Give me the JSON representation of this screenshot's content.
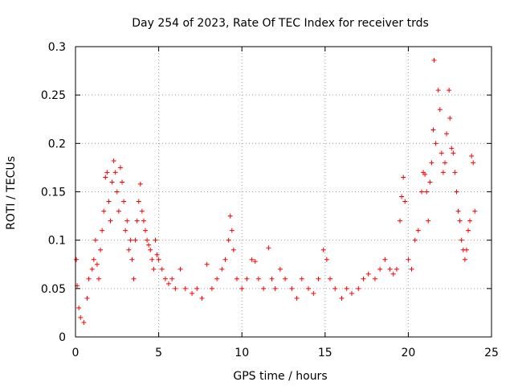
{
  "chart_data": {
    "type": "scatter",
    "title": "Day 254 of 2023, Rate Of TEC Index for receiver trds",
    "xlabel": "GPS time / hours",
    "ylabel": "ROTI / TECUs",
    "xlim": [
      0,
      25
    ],
    "ylim": [
      0,
      0.3
    ],
    "xticks": [
      0,
      5,
      10,
      15,
      20,
      25
    ],
    "xtick_labels": [
      "0",
      "5",
      "10",
      "15",
      "20",
      "25"
    ],
    "yticks": [
      0,
      0.05,
      0.1,
      0.15,
      0.2,
      0.25,
      0.3
    ],
    "ytick_labels": [
      "0",
      "0.05",
      "0.1",
      "0.15",
      "0.2",
      "0.25",
      "0.3"
    ],
    "grid": true,
    "marker": "+",
    "color": "#ff0000",
    "series": [
      {
        "name": "ROTI",
        "points": [
          [
            0.05,
            0.08
          ],
          [
            0.1,
            0.053
          ],
          [
            0.2,
            0.03
          ],
          [
            0.3,
            0.02
          ],
          [
            0.5,
            0.015
          ],
          [
            0.7,
            0.04
          ],
          [
            0.8,
            0.06
          ],
          [
            1.0,
            0.07
          ],
          [
            1.1,
            0.08
          ],
          [
            1.2,
            0.1
          ],
          [
            1.3,
            0.075
          ],
          [
            1.4,
            0.06
          ],
          [
            1.5,
            0.09
          ],
          [
            1.6,
            0.11
          ],
          [
            1.7,
            0.13
          ],
          [
            1.8,
            0.165
          ],
          [
            1.9,
            0.17
          ],
          [
            2.0,
            0.14
          ],
          [
            2.1,
            0.12
          ],
          [
            2.2,
            0.16
          ],
          [
            2.3,
            0.182
          ],
          [
            2.4,
            0.17
          ],
          [
            2.5,
            0.15
          ],
          [
            2.6,
            0.13
          ],
          [
            2.7,
            0.175
          ],
          [
            2.8,
            0.16
          ],
          [
            2.9,
            0.14
          ],
          [
            3.0,
            0.11
          ],
          [
            3.1,
            0.12
          ],
          [
            3.2,
            0.09
          ],
          [
            3.3,
            0.1
          ],
          [
            3.4,
            0.08
          ],
          [
            3.5,
            0.06
          ],
          [
            3.6,
            0.1
          ],
          [
            3.7,
            0.12
          ],
          [
            3.8,
            0.14
          ],
          [
            3.9,
            0.158
          ],
          [
            4.0,
            0.13
          ],
          [
            4.1,
            0.12
          ],
          [
            4.2,
            0.11
          ],
          [
            4.3,
            0.1
          ],
          [
            4.4,
            0.095
          ],
          [
            4.5,
            0.09
          ],
          [
            4.6,
            0.08
          ],
          [
            4.7,
            0.07
          ],
          [
            4.8,
            0.1
          ],
          [
            4.9,
            0.085
          ],
          [
            5.0,
            0.08
          ],
          [
            5.2,
            0.07
          ],
          [
            5.4,
            0.06
          ],
          [
            5.6,
            0.055
          ],
          [
            5.8,
            0.06
          ],
          [
            6.0,
            0.05
          ],
          [
            6.3,
            0.07
          ],
          [
            6.6,
            0.05
          ],
          [
            7.0,
            0.045
          ],
          [
            7.3,
            0.05
          ],
          [
            7.6,
            0.04
          ],
          [
            7.9,
            0.075
          ],
          [
            8.2,
            0.05
          ],
          [
            8.5,
            0.06
          ],
          [
            8.8,
            0.07
          ],
          [
            9.0,
            0.08
          ],
          [
            9.2,
            0.1
          ],
          [
            9.3,
            0.125
          ],
          [
            9.4,
            0.11
          ],
          [
            9.5,
            0.09
          ],
          [
            9.7,
            0.06
          ],
          [
            10.0,
            0.05
          ],
          [
            10.3,
            0.06
          ],
          [
            10.6,
            0.08
          ],
          [
            10.8,
            0.078
          ],
          [
            11.0,
            0.06
          ],
          [
            11.3,
            0.05
          ],
          [
            11.6,
            0.092
          ],
          [
            11.8,
            0.06
          ],
          [
            12.0,
            0.05
          ],
          [
            12.3,
            0.07
          ],
          [
            12.6,
            0.06
          ],
          [
            13.0,
            0.05
          ],
          [
            13.3,
            0.04
          ],
          [
            13.6,
            0.06
          ],
          [
            14.0,
            0.05
          ],
          [
            14.3,
            0.045
          ],
          [
            14.6,
            0.06
          ],
          [
            14.9,
            0.09
          ],
          [
            15.1,
            0.08
          ],
          [
            15.3,
            0.06
          ],
          [
            15.6,
            0.05
          ],
          [
            16.0,
            0.04
          ],
          [
            16.3,
            0.05
          ],
          [
            16.6,
            0.045
          ],
          [
            17.0,
            0.05
          ],
          [
            17.3,
            0.06
          ],
          [
            17.6,
            0.065
          ],
          [
            18.0,
            0.06
          ],
          [
            18.3,
            0.07
          ],
          [
            18.6,
            0.08
          ],
          [
            18.9,
            0.07
          ],
          [
            19.1,
            0.065
          ],
          [
            19.3,
            0.07
          ],
          [
            19.5,
            0.12
          ],
          [
            19.6,
            0.145
          ],
          [
            19.7,
            0.165
          ],
          [
            19.8,
            0.14
          ],
          [
            20.0,
            0.08
          ],
          [
            20.2,
            0.07
          ],
          [
            20.4,
            0.1
          ],
          [
            20.6,
            0.11
          ],
          [
            20.8,
            0.15
          ],
          [
            20.9,
            0.17
          ],
          [
            21.0,
            0.168
          ],
          [
            21.1,
            0.15
          ],
          [
            21.2,
            0.12
          ],
          [
            21.3,
            0.16
          ],
          [
            21.4,
            0.18
          ],
          [
            21.5,
            0.214
          ],
          [
            21.55,
            0.286
          ],
          [
            21.65,
            0.2
          ],
          [
            21.8,
            0.255
          ],
          [
            21.9,
            0.235
          ],
          [
            22.0,
            0.19
          ],
          [
            22.1,
            0.17
          ],
          [
            22.2,
            0.18
          ],
          [
            22.3,
            0.21
          ],
          [
            22.45,
            0.255
          ],
          [
            22.5,
            0.226
          ],
          [
            22.6,
            0.195
          ],
          [
            22.7,
            0.19
          ],
          [
            22.8,
            0.17
          ],
          [
            22.9,
            0.15
          ],
          [
            23.0,
            0.13
          ],
          [
            23.1,
            0.12
          ],
          [
            23.2,
            0.1
          ],
          [
            23.3,
            0.09
          ],
          [
            23.4,
            0.08
          ],
          [
            23.5,
            0.09
          ],
          [
            23.6,
            0.11
          ],
          [
            23.7,
            0.12
          ],
          [
            23.8,
            0.187
          ],
          [
            23.9,
            0.18
          ],
          [
            24.0,
            0.13
          ]
        ]
      }
    ]
  }
}
